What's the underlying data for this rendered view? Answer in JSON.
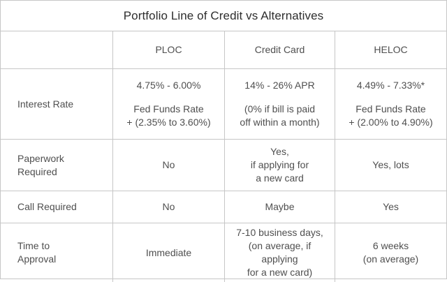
{
  "title": "Portfolio Line of Credit vs Alternatives",
  "columns": {
    "ploc": "PLOC",
    "credit_card": "Credit Card",
    "heloc": "HELOC"
  },
  "rows": [
    {
      "label": [
        "Interest Rate"
      ],
      "cells": [
        [
          "4.75% - 6.00%",
          "",
          "Fed Funds Rate",
          "+ (2.35% to 3.60%)"
        ],
        [
          "14% - 26% APR",
          "",
          "(0% if bill is paid",
          "off within a month)"
        ],
        [
          "4.49% - 7.33%*",
          "",
          "Fed Funds Rate",
          "+ (2.00% to 4.90%)"
        ]
      ]
    },
    {
      "label": [
        "Paperwork",
        "Required"
      ],
      "cells": [
        [
          "No"
        ],
        [
          "Yes,",
          "if applying for",
          "a new card"
        ],
        [
          "Yes, lots"
        ]
      ]
    },
    {
      "label": [
        "Call Required"
      ],
      "cells": [
        [
          "No"
        ],
        [
          "Maybe"
        ],
        [
          "Yes"
        ]
      ]
    },
    {
      "label": [
        "Time to",
        "Approval"
      ],
      "cells": [
        [
          "Immediate"
        ],
        [
          "7-10 business days,",
          "(on average, if applying",
          "for a new card)"
        ],
        [
          "6 weeks",
          "(on average)"
        ]
      ]
    }
  ],
  "colors": {
    "border": "#c6c6c6",
    "title_text": "#2e2e2e",
    "body_text": "#4f4f4f",
    "background": "#ffffff"
  }
}
